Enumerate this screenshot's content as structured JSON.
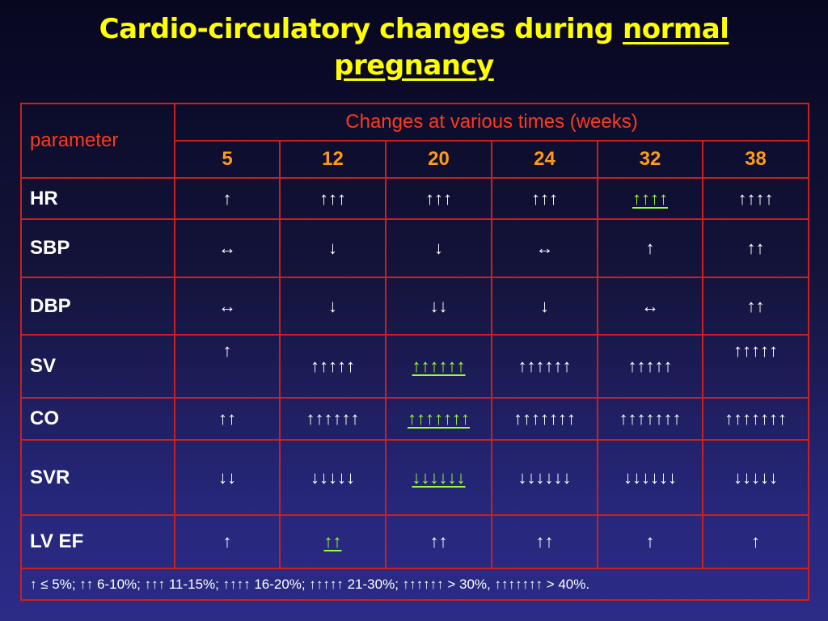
{
  "title": {
    "part1": "Cardio-circulatory changes during ",
    "part2": "normal",
    "part3": "pregnancy"
  },
  "table": {
    "param_header": "parameter",
    "group_header": "Changes at various times (weeks)",
    "weeks": [
      "5",
      "12",
      "20",
      "24",
      "32",
      "38"
    ],
    "rows": [
      {
        "param": "HR",
        "cells": [
          "↑",
          "↑↑↑",
          "↑↑↑",
          "↑↑↑",
          "↑↑↑↑",
          "↑↑↑↑"
        ]
      },
      {
        "param": "SBP",
        "cells": [
          "↔",
          "↓",
          "↓",
          "↔",
          "↑",
          "↑↑"
        ]
      },
      {
        "param": "DBP",
        "cells": [
          "↔",
          "↓",
          "↓↓",
          "↓",
          "↔",
          "↑↑"
        ]
      },
      {
        "param": "SV",
        "cells": [
          "↑",
          "↑↑↑↑↑",
          "↑↑↑↑↑↑",
          "↑↑↑↑↑↑",
          "↑↑↑↑↑",
          "↑↑↑↑↑"
        ]
      },
      {
        "param": "CO",
        "cells": [
          "↑↑",
          "↑↑↑↑↑↑",
          "↑↑↑↑↑↑↑",
          "↑↑↑↑↑↑↑",
          "↑↑↑↑↑↑↑",
          "↑↑↑↑↑↑↑"
        ]
      },
      {
        "param": "SVR",
        "cells": [
          "↓↓",
          "↓↓↓↓↓",
          "↓↓↓↓↓↓",
          "↓↓↓↓↓↓",
          "↓↓↓↓↓↓",
          "↓↓↓↓↓"
        ]
      },
      {
        "param": "LV EF",
        "cells": [
          "↑",
          "↑↑",
          "↑↑",
          "↑↑",
          "↑",
          "↑"
        ]
      }
    ],
    "legend": "↑ ≤ 5%; ↑↑ 6-10%; ↑↑↑ 11-15%; ↑↑↑↑ 16-20%; ↑↑↑↑↑ 21-30%; ↑↑↑↑↑↑ > 30%, ↑↑↑↑↑↑↑ > 40%."
  },
  "colors": {
    "title": "#ffff00",
    "header": "#ff3a1a",
    "weeks": "#ff9a1a",
    "highlight": "#99ff33",
    "border": "#cc1f1f"
  }
}
